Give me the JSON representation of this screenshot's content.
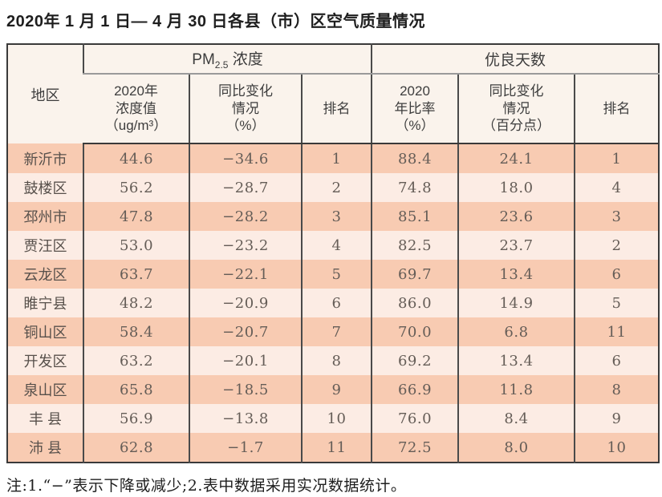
{
  "title": "2020年 1 月 1 日— 4 月 30 日各县（市）区空气质量情况",
  "colors": {
    "row_stripe_dark": "#f8cbb2",
    "row_stripe_light": "#fcece4",
    "header_bg": "#faf3ec",
    "border_dark": "#3a3a3a"
  },
  "table": {
    "region_header": "地区",
    "pm_group": {
      "prefix": "PM",
      "sub": "2.5",
      "suffix": " 浓度"
    },
    "good_group": "优良天数",
    "col_headers": [
      {
        "lines": [
          "2020年",
          "浓度值",
          "（ug/m³）"
        ]
      },
      {
        "lines": [
          "同比变化",
          "情况",
          "（%）"
        ]
      },
      {
        "lines": [
          "排名"
        ]
      },
      {
        "lines": [
          "2020",
          "年比率",
          "（%）"
        ]
      },
      {
        "lines": [
          "同比变化",
          "情况",
          "（百分点）"
        ]
      },
      {
        "lines": [
          "排名"
        ]
      }
    ],
    "rows": [
      {
        "region": "新沂市",
        "pm_value": "44.6",
        "pm_change": "−34.6",
        "pm_rank": "1",
        "good_ratio": "88.4",
        "good_change": "24.1",
        "good_rank": "1"
      },
      {
        "region": "鼓楼区",
        "pm_value": "56.2",
        "pm_change": "−28.7",
        "pm_rank": "2",
        "good_ratio": "74.8",
        "good_change": "18.0",
        "good_rank": "4"
      },
      {
        "region": "邳州市",
        "pm_value": "47.8",
        "pm_change": "−28.2",
        "pm_rank": "3",
        "good_ratio": "85.1",
        "good_change": "23.6",
        "good_rank": "3"
      },
      {
        "region": "贾汪区",
        "pm_value": "53.0",
        "pm_change": "−23.2",
        "pm_rank": "4",
        "good_ratio": "82.5",
        "good_change": "23.7",
        "good_rank": "2"
      },
      {
        "region": "云龙区",
        "pm_value": "63.7",
        "pm_change": "−22.1",
        "pm_rank": "5",
        "good_ratio": "69.7",
        "good_change": "13.4",
        "good_rank": "6"
      },
      {
        "region": "睢宁县",
        "pm_value": "48.2",
        "pm_change": "−20.9",
        "pm_rank": "6",
        "good_ratio": "86.0",
        "good_change": "14.9",
        "good_rank": "5"
      },
      {
        "region": "铜山区",
        "pm_value": "58.4",
        "pm_change": "−20.7",
        "pm_rank": "7",
        "good_ratio": "70.0",
        "good_change": "6.8",
        "good_rank": "11"
      },
      {
        "region": "开发区",
        "pm_value": "63.2",
        "pm_change": "−20.1",
        "pm_rank": "8",
        "good_ratio": "69.2",
        "good_change": "13.4",
        "good_rank": "6"
      },
      {
        "region": "泉山区",
        "pm_value": "65.8",
        "pm_change": "−18.5",
        "pm_rank": "9",
        "good_ratio": "66.9",
        "good_change": "11.8",
        "good_rank": "8"
      },
      {
        "region": "丰 县",
        "pm_value": "56.9",
        "pm_change": "−13.8",
        "pm_rank": "10",
        "good_ratio": "76.0",
        "good_change": "8.4",
        "good_rank": "9"
      },
      {
        "region": "沛 县",
        "pm_value": "62.8",
        "pm_change": "−1.7",
        "pm_rank": "11",
        "good_ratio": "72.5",
        "good_change": "8.0",
        "good_rank": "10"
      }
    ]
  },
  "footnote": "注:1.“−”表示下降或减少;2.表中数据采用实况数据统计。"
}
